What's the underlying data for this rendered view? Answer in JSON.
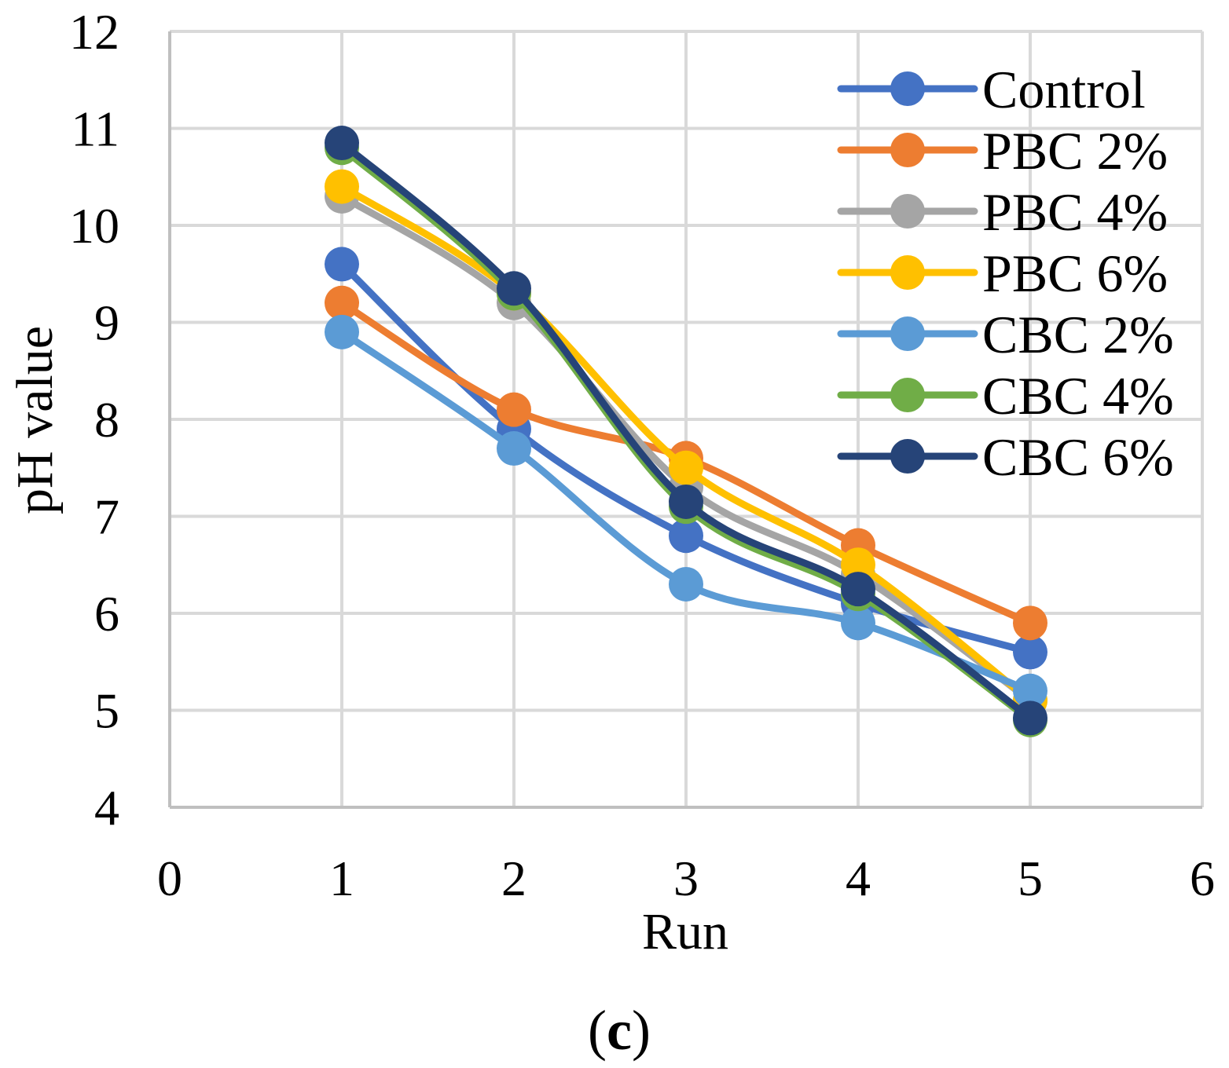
{
  "chart_data": {
    "type": "line",
    "smooth": true,
    "xlabel": "Run",
    "ylabel": "pH value",
    "panel_label": {
      "open": "(",
      "letter": "c",
      "close": ")"
    },
    "xlim": [
      0,
      6
    ],
    "ylim": [
      4,
      12
    ],
    "xticks": [
      "0",
      "1",
      "2",
      "3",
      "4",
      "5",
      "6"
    ],
    "yticks": [
      "4",
      "5",
      "6",
      "7",
      "8",
      "9",
      "10",
      "11",
      "12"
    ],
    "grid": true,
    "legend_position": "top-right",
    "x": [
      1,
      2,
      3,
      4,
      5
    ],
    "series": [
      {
        "name": "Control",
        "color": "#4472C4",
        "values": [
          9.6,
          7.9,
          6.8,
          6.1,
          5.6
        ]
      },
      {
        "name": "PBC 2%",
        "color": "#ED7D31",
        "values": [
          9.2,
          8.1,
          7.6,
          6.7,
          5.9
        ]
      },
      {
        "name": "PBC 4%",
        "color": "#A5A5A5",
        "values": [
          10.3,
          9.2,
          7.3,
          6.4,
          5.1
        ]
      },
      {
        "name": "PBC 6%",
        "color": "#FFC000",
        "values": [
          10.4,
          9.3,
          7.5,
          6.5,
          5.1
        ]
      },
      {
        "name": "CBC 2%",
        "color": "#5B9BD5",
        "values": [
          8.9,
          7.7,
          6.3,
          5.9,
          5.2
        ]
      },
      {
        "name": "CBC 4%",
        "color": "#70AD47",
        "values": [
          10.8,
          9.3,
          7.1,
          6.2,
          4.9
        ]
      },
      {
        "name": "CBC 6%",
        "color": "#264478",
        "values": [
          10.85,
          9.35,
          7.15,
          6.25,
          4.92
        ]
      }
    ]
  }
}
